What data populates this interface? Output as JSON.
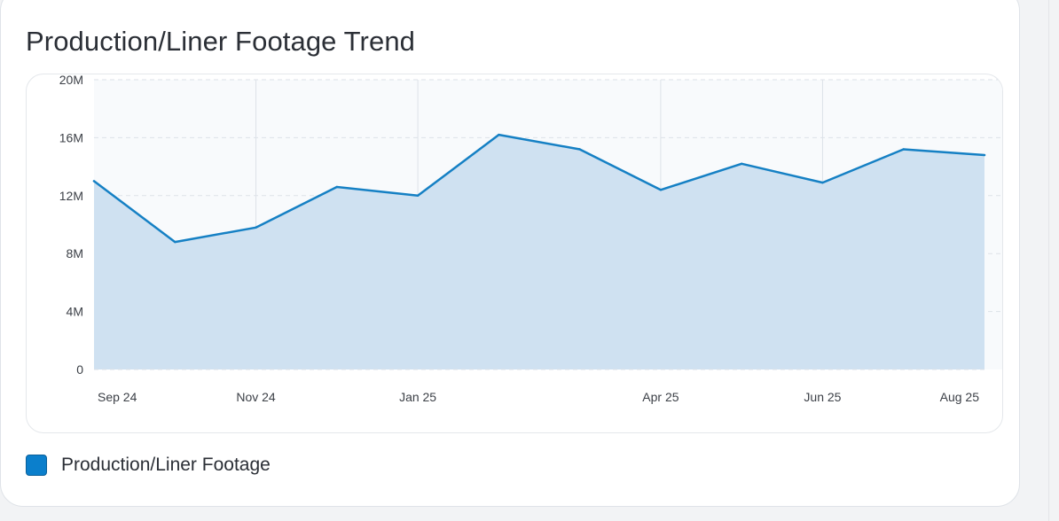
{
  "card": {
    "title": "Production/Liner Footage Trend"
  },
  "legend": {
    "label": "Production/Liner Footage",
    "swatch_icon": "square-swatch-icon"
  },
  "colors": {
    "line": "#1580c4",
    "fill": "#cfe1f1",
    "plot_background": "#f8fafc",
    "grid": "#dde2e8",
    "legend_swatch": "#0b7fcc",
    "legend_swatch_border": "#0a5f99"
  },
  "chart_data": {
    "type": "area",
    "title": "Production/Liner Footage Trend",
    "xlabel": "",
    "ylabel": "",
    "x": [
      "2024-09",
      "2024-10",
      "2024-11",
      "2024-12",
      "2025-01",
      "2025-02",
      "2025-03",
      "2025-04",
      "2025-05",
      "2025-06",
      "2025-07",
      "2025-08"
    ],
    "x_tick_labels": [
      {
        "x": "2024-09",
        "label": "Sep 24"
      },
      {
        "x": "2024-11",
        "label": "Nov 24"
      },
      {
        "x": "2025-01",
        "label": "Jan 25"
      },
      {
        "x": "2025-04",
        "label": "Apr 25"
      },
      {
        "x": "2025-06",
        "label": "Jun 25"
      },
      {
        "x": "2025-08",
        "label": "Aug 25"
      }
    ],
    "vertical_grid_at": [
      "2024-11",
      "2025-01",
      "2025-04",
      "2025-06"
    ],
    "series": [
      {
        "name": "Production/Liner Footage",
        "values": [
          13000000,
          8800000,
          9800000,
          12600000,
          12000000,
          16200000,
          15200000,
          12400000,
          14200000,
          12900000,
          15200000,
          14800000
        ]
      }
    ],
    "ylim": [
      0,
      20000000
    ],
    "y_ticks": [
      {
        "value": 0,
        "label": "0"
      },
      {
        "value": 4000000,
        "label": "4M"
      },
      {
        "value": 8000000,
        "label": "8M"
      },
      {
        "value": 12000000,
        "label": "12M"
      },
      {
        "value": 16000000,
        "label": "16M"
      },
      {
        "value": 20000000,
        "label": "20M"
      }
    ],
    "grid": true,
    "legend_position": "bottom-left"
  }
}
